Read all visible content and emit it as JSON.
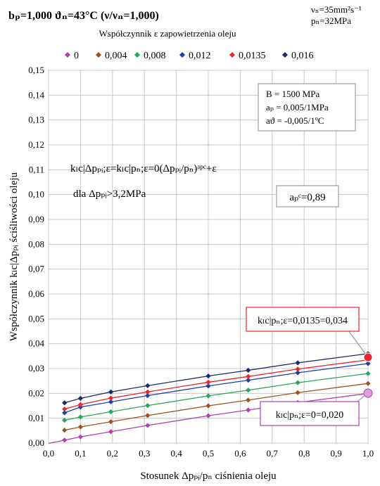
{
  "header": {
    "left_title": "bₚ=1,000   ϑₙ=43°C (ν/νₙ=1,000)",
    "right_line1": "νₙ=35mm²s⁻¹",
    "right_line2": "pₙ=32MPa"
  },
  "chart_data": {
    "type": "line",
    "title": "",
    "legend_title": "Współczynnik ε zapowietrzenia oleju",
    "legend_position": "top",
    "xlabel": "Stosunek Δpₚᵢ/pₙ ciśnienia oleju",
    "ylabel": "Współczynnik kₗc|Δpₚᵢ ściśliwości oleju",
    "xlim": [
      0.0,
      1.0
    ],
    "ylim": [
      0.0,
      0.15
    ],
    "grid": true,
    "x_ticks": [
      "0,0",
      "0,1",
      "0,2",
      "0,3",
      "0,4",
      "0,5",
      "0,6",
      "0,7",
      "0,8",
      "0,9",
      "1,0"
    ],
    "y_ticks": [
      "0,00",
      "0,01",
      "0,02",
      "0,03",
      "0,04",
      "0,05",
      "0,06",
      "0,07",
      "0,08",
      "0,09",
      "0,10",
      "0,11",
      "0,12",
      "0,13",
      "0,14",
      "0,15"
    ],
    "x": [
      0.05,
      0.1,
      0.195,
      0.31,
      0.5,
      0.625,
      0.78,
      1.0
    ],
    "series": [
      {
        "name": "0",
        "color": "#b040b0",
        "values": [
          0.0012,
          0.0025,
          0.0046,
          0.0071,
          0.011,
          0.0133,
          0.0163,
          0.02
        ]
      },
      {
        "name": "0,004",
        "color": "#a0521a",
        "values": [
          0.0052,
          0.0065,
          0.0086,
          0.0111,
          0.015,
          0.0173,
          0.0203,
          0.024
        ]
      },
      {
        "name": "0,008",
        "color": "#22a85a",
        "values": [
          0.0092,
          0.0105,
          0.0126,
          0.0151,
          0.019,
          0.0213,
          0.0243,
          0.028
        ]
      },
      {
        "name": "0,012",
        "color": "#1f3fa8",
        "values": [
          0.0122,
          0.0145,
          0.0166,
          0.0191,
          0.023,
          0.0253,
          0.0283,
          0.032
        ]
      },
      {
        "name": "0,0135",
        "color": "#e8262c",
        "values": [
          0.0137,
          0.0155,
          0.0181,
          0.0206,
          0.0245,
          0.0268,
          0.0298,
          0.0335
        ]
      },
      {
        "name": "0,016",
        "color": "#1a2a6a",
        "values": [
          0.0162,
          0.018,
          0.0206,
          0.0231,
          0.027,
          0.0293,
          0.0323,
          0.036
        ]
      }
    ],
    "annotations": {
      "params_line1": "B = 1500 MPa",
      "params_line2": "aₚ = 0,005/1MPa",
      "params_line3": "aϑ = -0,005/1ºC",
      "formula": "kₗc|Δpₚᵢ;ε=kₗc|pₙ;ε=0(Δpₚᵢ/pₙ)ᵃᵖᶜ+ε",
      "formula_condition": "dla  Δpₚᵢ>3,2MPa",
      "apc_box": "aₚᶜ=0,89",
      "callout_top": "kₗc|pₙ;ε=0,0135=0,034",
      "callout_bottom": "kₗc|pₙ;ε=0=0,020"
    }
  }
}
